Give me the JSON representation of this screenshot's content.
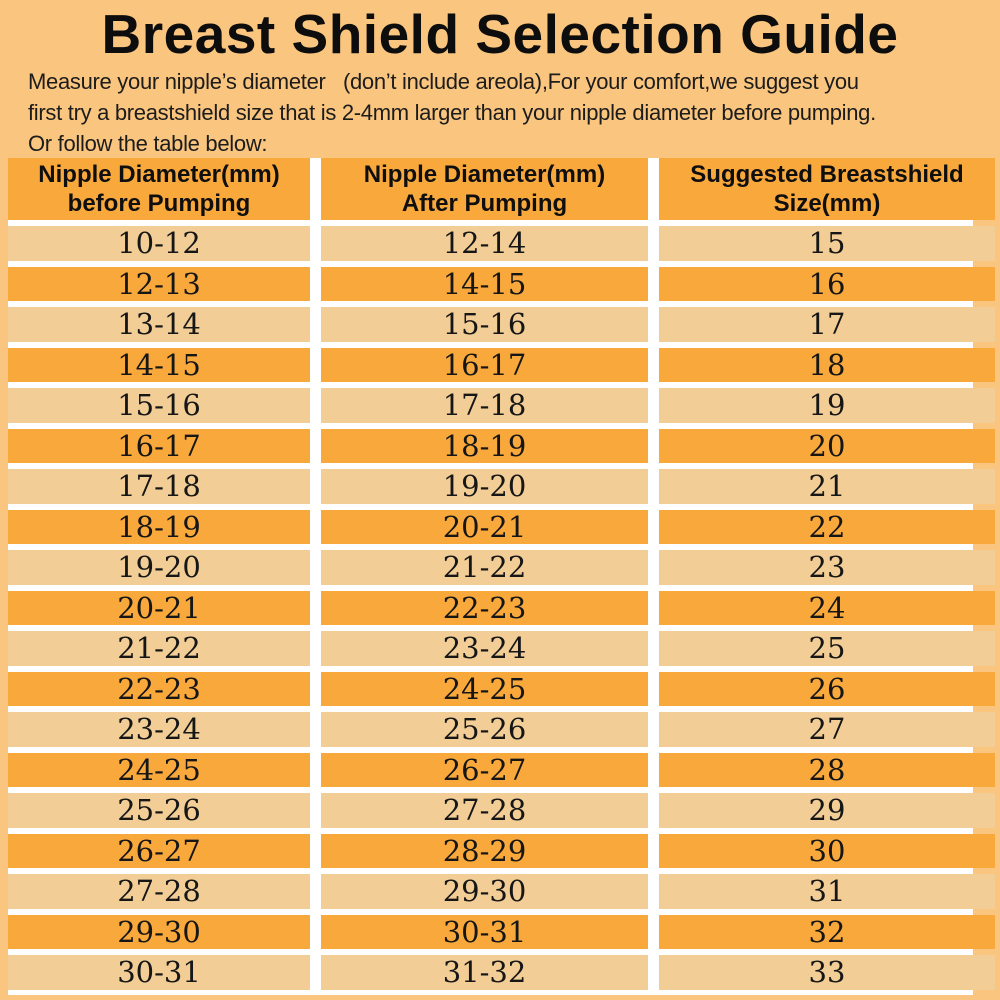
{
  "title": "Breast Shield Selection Guide",
  "intro": {
    "line1": "Measure your nipple’s diameter   (don’t include areola),For your comfort,we suggest you",
    "line2": "first try a breastshield size that is 2-4mm larger than your nipple diameter before pumping.",
    "line3": "Or follow the table below:"
  },
  "table": {
    "headers": [
      {
        "line1": "Nipple Diameter(mm)",
        "line2": "before Pumping"
      },
      {
        "line1": "Nipple Diameter(mm)",
        "line2": "After Pumping"
      },
      {
        "line1": "Suggested Breastshield",
        "line2": "Size(mm)"
      }
    ],
    "rows": [
      [
        "10-12",
        "12-14",
        "15"
      ],
      [
        "12-13",
        "14-15",
        "16"
      ],
      [
        "13-14",
        "15-16",
        "17"
      ],
      [
        "14-15",
        "16-17",
        "18"
      ],
      [
        "15-16",
        "17-18",
        "19"
      ],
      [
        "16-17",
        "18-19",
        "20"
      ],
      [
        "17-18",
        "19-20",
        "21"
      ],
      [
        "18-19",
        "20-21",
        "22"
      ],
      [
        "19-20",
        "21-22",
        "23"
      ],
      [
        "20-21",
        "22-23",
        "24"
      ],
      [
        "21-22",
        "23-24",
        "25"
      ],
      [
        "22-23",
        "24-25",
        "26"
      ],
      [
        "23-24",
        "25-26",
        "27"
      ],
      [
        "24-25",
        "26-27",
        "28"
      ],
      [
        "25-26",
        "27-28",
        "29"
      ],
      [
        "26-27",
        "28-29",
        "30"
      ],
      [
        "27-28",
        "29-30",
        "31"
      ],
      [
        "29-30",
        "30-31",
        "32"
      ],
      [
        "30-31",
        "31-32",
        "33"
      ]
    ]
  },
  "colors": {
    "background": "#FAC57E",
    "row_orange": "#F9A83C",
    "row_tan": "#F2CE96",
    "header_bg": "#F9A83C",
    "gap": "#FFFFFF",
    "text": "#141414"
  }
}
